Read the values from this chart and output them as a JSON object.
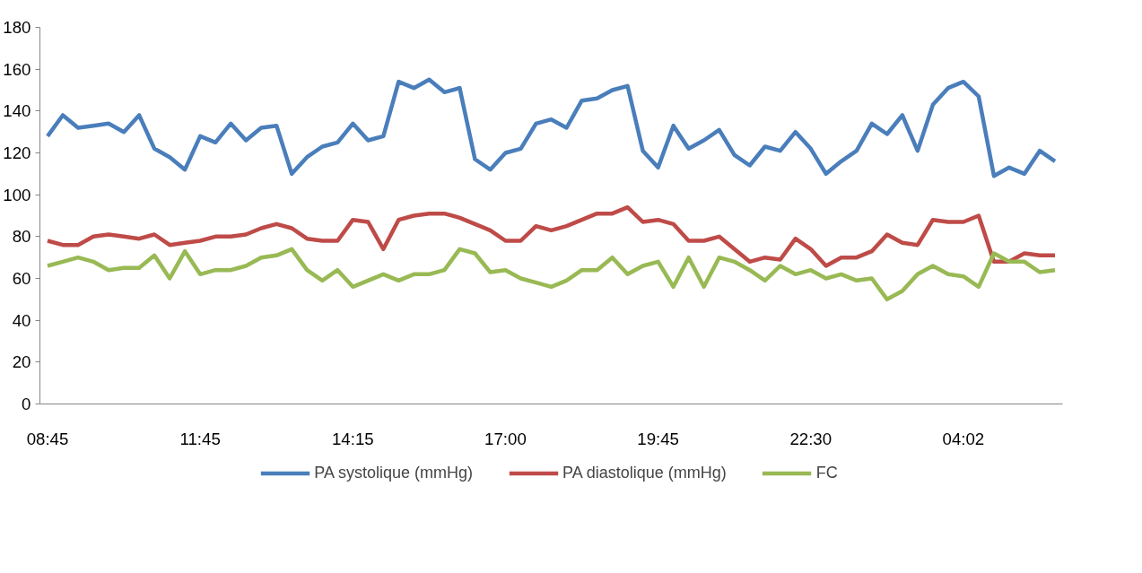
{
  "chart_data": {
    "type": "line",
    "categories": [
      "08:45",
      null,
      null,
      null,
      null,
      null,
      null,
      null,
      null,
      null,
      "11:45",
      null,
      null,
      null,
      null,
      null,
      null,
      null,
      null,
      null,
      "14:15",
      null,
      null,
      null,
      null,
      null,
      null,
      null,
      null,
      null,
      "17:00",
      null,
      null,
      null,
      null,
      null,
      null,
      null,
      null,
      null,
      "19:45",
      null,
      null,
      null,
      null,
      null,
      null,
      null,
      null,
      null,
      "22:30",
      null,
      null,
      null,
      null,
      null,
      null,
      null,
      null,
      null,
      "04:02",
      null,
      null,
      null,
      null,
      null,
      null
    ],
    "ylim": [
      0,
      180
    ],
    "yticks": [
      0,
      20,
      40,
      60,
      80,
      100,
      120,
      140,
      160,
      180
    ],
    "grid": false,
    "legend": "bottom",
    "marker": "none",
    "line_style": "solid",
    "series": [
      {
        "name": "PA systolique (mmHg)",
        "color": "#4a7ebb",
        "values": [
          128,
          138,
          132,
          133,
          134,
          130,
          138,
          122,
          118,
          112,
          128,
          125,
          134,
          126,
          132,
          133,
          110,
          118,
          123,
          125,
          134,
          126,
          128,
          154,
          151,
          155,
          149,
          151,
          117,
          112,
          120,
          122,
          134,
          136,
          132,
          145,
          146,
          150,
          152,
          121,
          113,
          133,
          122,
          126,
          131,
          119,
          114,
          123,
          121,
          130,
          122,
          110,
          116,
          121,
          134,
          129,
          138,
          121,
          143,
          151,
          154,
          147,
          109,
          113,
          110,
          121,
          116
        ]
      },
      {
        "name": "PA diastolique (mmHg)",
        "color": "#be4b48",
        "values": [
          78,
          76,
          76,
          80,
          81,
          80,
          79,
          81,
          76,
          77,
          78,
          80,
          80,
          81,
          84,
          86,
          84,
          79,
          78,
          78,
          88,
          87,
          74,
          88,
          90,
          91,
          91,
          89,
          86,
          83,
          78,
          78,
          85,
          83,
          85,
          88,
          91,
          91,
          94,
          87,
          88,
          86,
          78,
          78,
          80,
          74,
          68,
          70,
          69,
          79,
          74,
          66,
          70,
          70,
          73,
          81,
          77,
          76,
          88,
          87,
          87,
          90,
          68,
          68,
          72,
          71,
          71
        ]
      },
      {
        "name": "FC",
        "color": "#98b954",
        "values": [
          66,
          68,
          70,
          68,
          64,
          65,
          65,
          71,
          60,
          73,
          62,
          64,
          64,
          66,
          70,
          71,
          74,
          64,
          59,
          64,
          56,
          59,
          62,
          59,
          62,
          62,
          64,
          74,
          72,
          63,
          64,
          60,
          58,
          56,
          59,
          64,
          64,
          70,
          62,
          66,
          68,
          56,
          70,
          56,
          70,
          68,
          64,
          59,
          66,
          62,
          64,
          60,
          62,
          59,
          60,
          50,
          54,
          62,
          66,
          62,
          61,
          56,
          72,
          68,
          68,
          63,
          64
        ]
      }
    ]
  }
}
